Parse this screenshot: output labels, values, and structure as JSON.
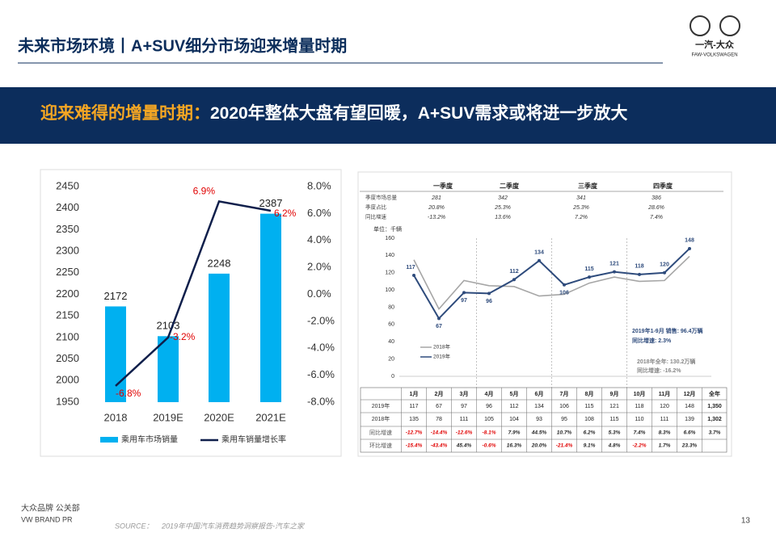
{
  "header": {
    "title": "未来市场环境丨A+SUV细分市场迎来增量时期",
    "logo_cn": "一汽-大众",
    "logo_en": "FAW-VOLKSWAGEN"
  },
  "banner": {
    "highlight": "迎来难得的增量时期：",
    "text": "2020年整体大盘有望回暖，A+SUV需求或将进一步放大"
  },
  "chart_data": [
    {
      "type": "bar",
      "categories": [
        "2018",
        "2019E",
        "2020E",
        "2021E"
      ],
      "series": [
        {
          "name": "乘用车市场销量",
          "color": "#00b0f0",
          "values": [
            2172,
            2103,
            2248,
            2387
          ]
        },
        {
          "name": "乘用车销量增长率",
          "type": "line",
          "axis": "y2",
          "color": "#0f1f4b",
          "label_color": "#e00000",
          "values": [
            -6.8,
            -3.2,
            6.9,
            6.2
          ],
          "value_labels": [
            "-6.8%",
            "-3.2%",
            "6.9%",
            "6.2%"
          ]
        }
      ],
      "ylim": [
        1950,
        2450
      ],
      "yticks": [
        1950,
        2000,
        2050,
        2100,
        2150,
        2200,
        2250,
        2300,
        2350,
        2400,
        2450
      ],
      "y2lim": [
        -8,
        8
      ],
      "y2ticks": [
        {
          "value": -8,
          "label": "-8.0%"
        },
        {
          "value": -6,
          "label": "-6.0%"
        },
        {
          "value": -4,
          "label": "-4.0%"
        },
        {
          "value": -2,
          "label": "-2.0%"
        },
        {
          "value": 0,
          "label": "0.0%"
        },
        {
          "value": 2,
          "label": "2.0%"
        },
        {
          "value": 4,
          "label": "4.0%"
        },
        {
          "value": 6,
          "label": "6.0%"
        },
        {
          "value": 8,
          "label": "8.0%"
        }
      ],
      "legend": "bottom"
    },
    {
      "type": "line",
      "unit": "单位：千辆",
      "categories": [
        "1月",
        "2月",
        "3月",
        "4月",
        "5月",
        "6月",
        "7月",
        "8月",
        "9月",
        "10月",
        "11月",
        "12月"
      ],
      "series": [
        {
          "name": "2018年",
          "color": "#a6a6a6",
          "values": [
            135,
            78,
            111,
            105,
            104,
            93,
            95,
            108,
            115,
            110,
            111,
            139
          ]
        },
        {
          "name": "2019年",
          "color": "#2e4b7c",
          "values": [
            117,
            67,
            97,
            96,
            112,
            134,
            106,
            115,
            121,
            118,
            120,
            148
          ]
        }
      ],
      "ylim": [
        0,
        160
      ],
      "yticks": [
        0,
        20,
        40,
        60,
        80,
        100,
        120,
        140,
        160
      ],
      "annotations": [
        "2019年1-9月  销售: 96.4万辆",
        "同比增速: 2.3%",
        "2018年全年: 130.2万辆",
        "同比增速: -16.2%"
      ],
      "quarter_table": {
        "columns": [
          "一季度",
          "二季度",
          "三季度",
          "四季度"
        ],
        "rows": [
          {
            "label": "季度市场总量",
            "values": [
              281,
              342,
              341,
              386
            ]
          },
          {
            "label": "季度占比",
            "values": [
              "20.8%",
              "25.3%",
              "25.3%",
              "28.6%"
            ]
          },
          {
            "label": "同比增速",
            "values": [
              "-13.2%",
              "13.6%",
              "7.2%",
              "7.4%"
            ]
          }
        ]
      }
    }
  ],
  "table": {
    "annual_header": "全年",
    "annual": [
      "1,350",
      "1,302"
    ],
    "growth_rows": [
      {
        "label": "同比增速",
        "values": [
          "-12.7%",
          "-14.4%",
          "-12.6%",
          "-8.1%",
          "7.9%",
          "44.5%",
          "10.7%",
          "6.2%",
          "5.3%",
          "7.4%",
          "8.3%",
          "6.6%",
          "3.7%"
        ]
      },
      {
        "label": "环比增速",
        "values": [
          "-15.4%",
          "-43.4%",
          "45.4%",
          "-0.6%",
          "16.3%",
          "20.0%",
          "-21.4%",
          "9.1%",
          "4.8%",
          "-2.2%",
          "1.7%",
          "23.3%"
        ]
      }
    ]
  },
  "footer": {
    "dept": "大众品牌 公关部",
    "dept_en": "VW BRAND PR",
    "source_label": "SOURCE：",
    "source": "2019年中国汽车消费趋势洞察报告-汽车之家",
    "page": "13"
  }
}
